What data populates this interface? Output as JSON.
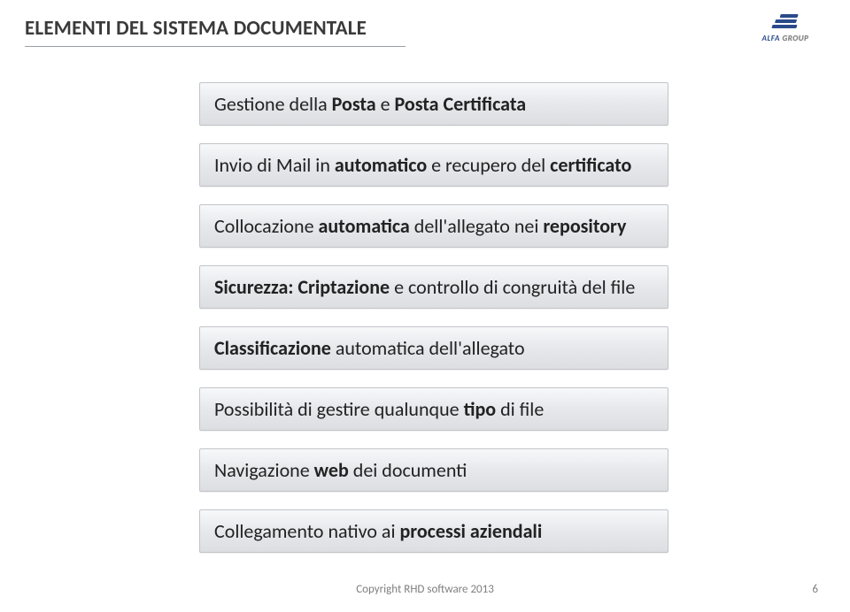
{
  "header": {
    "title": "ELEMENTI DEL SISTEMA DOCUMENTALE"
  },
  "logo": {
    "name": "ALFA",
    "suffix": "GROUP"
  },
  "items": [
    {
      "lead": "Gestione della ",
      "bold1": "Posta",
      "mid": " e ",
      "bold2": "Posta Certificata",
      "tail": ""
    },
    {
      "lead": "Invio di Mail in ",
      "bold1": "automatico",
      "mid": " e recupero del ",
      "bold2": "certificato",
      "tail": ""
    },
    {
      "lead": "Collocazione ",
      "bold1": "automatica",
      "mid": " dell'allegato nei ",
      "bold2": "repository",
      "tail": ""
    },
    {
      "lead": "",
      "bold1": "Sicurezza:",
      "mid": " ",
      "bold2": "Criptazione",
      "tail": " e controllo di congruità del file"
    },
    {
      "lead": "",
      "bold1": "Classificazione",
      "mid": " automatica dell'allegato",
      "bold2": "",
      "tail": ""
    },
    {
      "lead": "Possibilità di gestire qualunque ",
      "bold1": "tipo",
      "mid": " di file",
      "bold2": "",
      "tail": ""
    },
    {
      "lead": "Navigazione ",
      "bold1": "web",
      "mid": " dei documenti",
      "bold2": "",
      "tail": ""
    },
    {
      "lead": "Collegamento nativo ai ",
      "bold1": "processi aziendali",
      "mid": "",
      "bold2": "",
      "tail": ""
    }
  ],
  "footer": {
    "copyright": "Copyright RHD software 2013",
    "page": "6"
  },
  "style": {
    "item_bg_gradient_top": "#f7f8fa",
    "item_bg_gradient_bottom": "#dcdee2",
    "item_border": "#c2c4c8",
    "title_color": "#3a3a3a",
    "text_color": "#222222",
    "footer_color": "#808080",
    "logo_color": "#2a4a8a"
  }
}
